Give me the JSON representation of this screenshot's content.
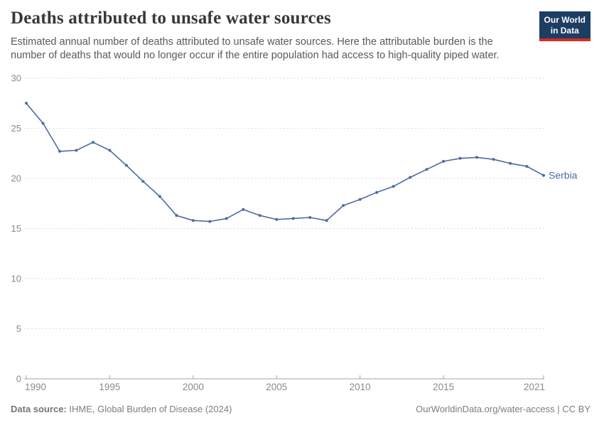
{
  "header": {
    "title": "Deaths attributed to unsafe water sources",
    "subtitle": "Estimated annual number of deaths attributed to unsafe water sources. Here the attributable burden is the number of deaths that would no longer occur if the entire population had access to high-quality piped water."
  },
  "logo": {
    "lines": [
      "Our World",
      "in Data"
    ]
  },
  "chart_data": {
    "type": "line",
    "title": "Deaths attributed to unsafe water sources",
    "xlabel": "",
    "ylabel": "",
    "xlim": [
      1990,
      2021
    ],
    "ylim": [
      0,
      30
    ],
    "xticks": [
      1990,
      1995,
      2000,
      2005,
      2010,
      2015,
      2021
    ],
    "yticks": [
      0,
      5,
      10,
      15,
      20,
      25,
      30
    ],
    "grid": "horizontal-dashed",
    "legend": "end-of-line-entity-label",
    "x": [
      1990,
      1991,
      1992,
      1993,
      1994,
      1995,
      1996,
      1997,
      1998,
      1999,
      2000,
      2001,
      2002,
      2003,
      2004,
      2005,
      2006,
      2007,
      2008,
      2009,
      2010,
      2011,
      2012,
      2013,
      2014,
      2015,
      2016,
      2017,
      2018,
      2019,
      2020,
      2021
    ],
    "series": [
      {
        "name": "Serbia",
        "color": "#4c6ba3",
        "values": [
          27.5,
          25.5,
          22.7,
          22.8,
          23.6,
          22.8,
          21.3,
          19.7,
          18.2,
          16.3,
          15.8,
          15.7,
          16.0,
          16.9,
          16.3,
          15.9,
          16.0,
          16.1,
          15.8,
          17.3,
          17.9,
          18.6,
          19.2,
          20.1,
          20.9,
          21.7,
          22.0,
          22.1,
          21.9,
          21.5,
          21.2,
          20.3
        ]
      }
    ]
  },
  "colors": {
    "series_line": "#4c6ba3",
    "grid": "#dcdcdc",
    "axis": "#a5a5a5",
    "tick_label": "#8a8a8a",
    "title": "#383838",
    "subtitle": "#595959",
    "footer_text": "#7d7d7d",
    "logo_bg": "#1d3d63",
    "logo_stripe": "#cf2e26"
  },
  "footer": {
    "source_label": "Data source:",
    "source_value": "IHME, Global Burden of Disease (2024)",
    "credit": "OurWorldinData.org/water-access | CC BY"
  }
}
